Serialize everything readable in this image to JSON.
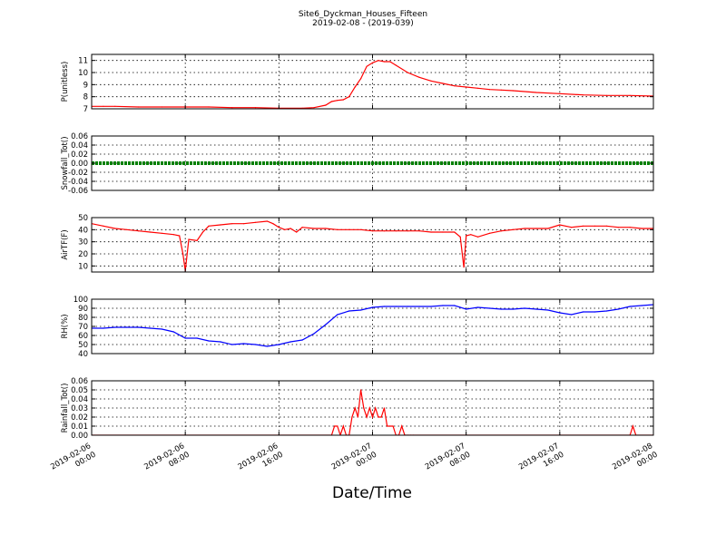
{
  "title": "Site6_Dyckman_Houses_Fifteen",
  "subtitle": "2019-02-08 - (2019-039)",
  "xlabel": "Date/Time",
  "x_ticks": [
    "2019-02-06 00:00",
    "2019-02-06 08:00",
    "2019-02-06 16:00",
    "2019-02-07 00:00",
    "2019-02-07 08:00",
    "2019-02-07 16:00",
    "2019-02-08 00:00"
  ],
  "chart_data": [
    {
      "type": "line",
      "ylabel": "P(unitless)",
      "ylim": [
        7,
        11.5
      ],
      "yticks": [
        7,
        8,
        9,
        10,
        11
      ],
      "grid": true,
      "color": "#ff0000",
      "x": [
        0,
        1,
        2,
        4,
        6,
        8,
        10,
        12,
        14,
        16,
        18,
        19,
        20,
        20.5,
        21,
        21.5,
        22,
        22.5,
        23,
        23.5,
        24,
        24.5,
        25,
        25.5,
        26,
        27,
        28,
        29,
        30,
        31,
        32,
        33,
        34,
        35,
        36,
        38,
        40,
        42,
        44,
        46,
        48
      ],
      "y": [
        7.2,
        7.2,
        7.2,
        7.15,
        7.15,
        7.15,
        7.15,
        7.1,
        7.1,
        7.05,
        7.05,
        7.1,
        7.3,
        7.6,
        7.7,
        7.75,
        8.0,
        8.8,
        9.5,
        10.5,
        10.8,
        11.0,
        10.9,
        10.9,
        10.6,
        10.0,
        9.6,
        9.3,
        9.1,
        8.9,
        8.8,
        8.7,
        8.6,
        8.55,
        8.5,
        8.35,
        8.25,
        8.15,
        8.1,
        8.1,
        8.05
      ]
    },
    {
      "type": "line",
      "ylabel": "Snowfall_Tot()",
      "ylim": [
        -0.06,
        0.06
      ],
      "yticks": [
        -0.06,
        -0.04,
        -0.02,
        0.0,
        0.02,
        0.04,
        0.06
      ],
      "grid": true,
      "color": "#008000",
      "x": [
        0,
        48
      ],
      "y": [
        0,
        0
      ]
    },
    {
      "type": "line",
      "ylabel": "AirTF(F)",
      "ylim": [
        5,
        50
      ],
      "yticks": [
        10,
        20,
        30,
        40,
        50
      ],
      "grid": true,
      "color": "#ff0000",
      "x": [
        0,
        1,
        2,
        3,
        4,
        5,
        6,
        7,
        7.5,
        7.8,
        8.0,
        8.3,
        9,
        9.5,
        10,
        11,
        12,
        13,
        14,
        15,
        15.5,
        16,
        16.5,
        17,
        17.5,
        18,
        19,
        20,
        21,
        22,
        23,
        24,
        25,
        26,
        27,
        28,
        29,
        30,
        31,
        31.5,
        31.8,
        32.0,
        32.4,
        33,
        34,
        35,
        36,
        37,
        38,
        39,
        40,
        41,
        42,
        43,
        44,
        45,
        46,
        47,
        48
      ],
      "y": [
        45,
        43,
        41,
        40,
        39,
        38,
        37,
        36,
        35,
        20,
        6,
        32,
        31,
        38,
        43,
        44,
        45,
        45,
        46,
        47,
        45,
        42,
        40,
        41,
        38,
        42,
        41,
        41,
        40,
        40,
        40,
        39,
        39,
        39,
        39,
        39,
        38,
        38,
        38,
        34,
        9,
        35,
        36,
        34,
        37,
        39,
        40,
        41,
        41,
        41,
        44,
        42,
        43,
        43,
        43,
        42,
        42,
        41,
        41
      ]
    },
    {
      "type": "line",
      "ylabel": "RH(%)",
      "ylim": [
        40,
        100
      ],
      "yticks": [
        40,
        50,
        60,
        70,
        80,
        90,
        100
      ],
      "grid": true,
      "color": "#0000ff",
      "x": [
        0,
        1,
        2,
        3,
        4,
        5,
        6,
        7,
        8,
        9,
        10,
        11,
        12,
        13,
        14,
        15,
        16,
        17,
        18,
        19,
        20,
        21,
        22,
        23,
        24,
        25,
        26,
        27,
        28,
        29,
        30,
        31,
        32,
        33,
        34,
        35,
        36,
        37,
        38,
        39,
        40,
        41,
        42,
        43,
        44,
        45,
        46,
        47,
        48
      ],
      "y": [
        68,
        68,
        69,
        69,
        69,
        68,
        67,
        64,
        57,
        57,
        54,
        53,
        50,
        51,
        50,
        48,
        50,
        53,
        55,
        62,
        72,
        83,
        87,
        88,
        91,
        92,
        92,
        92,
        92,
        92,
        93,
        93,
        89,
        91,
        90,
        89,
        89,
        90,
        89,
        88,
        85,
        83,
        86,
        86,
        87,
        89,
        92,
        93,
        94
      ]
    },
    {
      "type": "line",
      "ylabel": "Rainfall_Tot()",
      "ylim": [
        0,
        0.06
      ],
      "yticks": [
        0.0,
        0.01,
        0.02,
        0.03,
        0.04,
        0.05,
        0.06
      ],
      "grid": true,
      "color": "#ff0000",
      "x": [
        0,
        20.5,
        20.75,
        21,
        21.25,
        21.5,
        21.75,
        22,
        22.25,
        22.5,
        22.75,
        23,
        23.25,
        23.5,
        23.75,
        24,
        24.25,
        24.5,
        24.75,
        25,
        25.25,
        25.5,
        25.75,
        26,
        26.25,
        26.5,
        26.75,
        27,
        27.25,
        27.5,
        46,
        46.25,
        46.5,
        48
      ],
      "y": [
        0,
        0,
        0.01,
        0.01,
        0,
        0.01,
        0,
        0,
        0.02,
        0.03,
        0.02,
        0.05,
        0.03,
        0.02,
        0.03,
        0.02,
        0.03,
        0.02,
        0.02,
        0.03,
        0.01,
        0.01,
        0.01,
        0,
        0,
        0.01,
        0,
        0,
        0,
        0,
        0,
        0.01,
        0,
        0
      ]
    }
  ]
}
